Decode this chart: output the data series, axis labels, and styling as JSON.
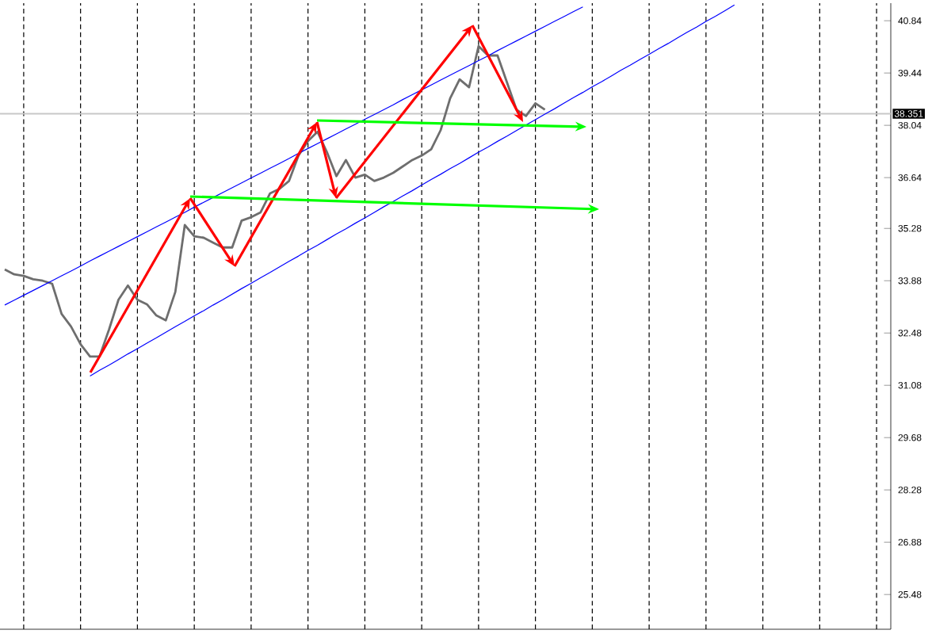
{
  "chart_data": {
    "type": "line",
    "categories": [
      null,
      null,
      null,
      null,
      null,
      null,
      null,
      null,
      null,
      null,
      null,
      null,
      null,
      null,
      null,
      null,
      null,
      null,
      null,
      null,
      null,
      null,
      null,
      null,
      null,
      null,
      null,
      null,
      null,
      null,
      null,
      null,
      null,
      null,
      null,
      null,
      null,
      null,
      null,
      null,
      null,
      null,
      null,
      null,
      null,
      null,
      null,
      null,
      null,
      null,
      null,
      null,
      null,
      null,
      null,
      null,
      null,
      null,
      null,
      null,
      null,
      null,
      null,
      null,
      null,
      null,
      null,
      null,
      null,
      null,
      null,
      null,
      null,
      null,
      null,
      null,
      null,
      null,
      null,
      null,
      null,
      null,
      null,
      null,
      null,
      null,
      null,
      null,
      null,
      null,
      null,
      null,
      null,
      null
    ],
    "series": [
      {
        "color": "#6e6e6e",
        "values": [
          34.18,
          34.05,
          34.01,
          33.92,
          33.88,
          33.8,
          32.99,
          32.65,
          32.18,
          31.85,
          31.85,
          32.57,
          33.37,
          33.75,
          33.37,
          33.25,
          32.95,
          32.82,
          33.58,
          35.37,
          35.07,
          35.03,
          34.9,
          34.77,
          34.77,
          35.49,
          35.58,
          35.71,
          36.22,
          36.34,
          36.55,
          37.23,
          37.62,
          37.87,
          37.32,
          36.68,
          37.11,
          36.64,
          36.72,
          36.55,
          36.64,
          36.77,
          36.94,
          37.11,
          37.23,
          37.4,
          37.91,
          38.76,
          39.27,
          39.06,
          40.16,
          39.91,
          39.91,
          39.19,
          38.46,
          38.29,
          38.63,
          38.46,
          null,
          null,
          null,
          null,
          null,
          null,
          null,
          null,
          null,
          null,
          null,
          null,
          null,
          null,
          null,
          null,
          null,
          null,
          null,
          null,
          null,
          null,
          null,
          null,
          null,
          null,
          null,
          null,
          null,
          null,
          null,
          null,
          null,
          null,
          null,
          null
        ]
      },
      {
        "color": "#0000ff",
        "values": [
          33.23,
          33.36,
          33.49,
          33.62,
          33.75,
          33.88,
          34.01,
          34.14,
          34.27,
          34.41,
          34.54,
          34.67,
          34.8,
          34.93,
          35.06,
          35.19,
          35.32,
          35.45,
          35.58,
          35.71,
          35.85,
          35.98,
          36.11,
          36.24,
          36.37,
          36.5,
          36.63,
          36.76,
          36.89,
          37.02,
          37.15,
          37.29,
          37.42,
          37.55,
          37.68,
          37.81,
          37.94,
          38.07,
          38.2,
          38.33,
          38.46,
          38.59,
          38.73,
          38.86,
          38.99,
          39.12,
          39.25,
          39.38,
          39.51,
          39.64,
          39.77,
          39.9,
          40.04,
          40.17,
          40.3,
          40.43,
          40.56,
          40.69,
          40.82,
          40.95,
          41.08,
          41.21,
          null,
          null,
          null,
          null,
          null,
          null,
          null,
          null,
          null,
          null,
          null,
          null,
          null,
          null,
          null,
          null,
          null,
          null,
          null,
          null,
          null,
          null,
          null,
          null,
          null,
          null,
          null,
          null,
          null,
          null,
          null,
          null
        ]
      },
      {
        "color": "#0000ff",
        "values": [
          null,
          null,
          null,
          null,
          null,
          null,
          null,
          null,
          null,
          31.33,
          31.48,
          31.62,
          31.77,
          31.92,
          32.06,
          32.21,
          32.35,
          32.5,
          32.65,
          32.79,
          32.94,
          33.08,
          33.23,
          33.37,
          33.52,
          33.67,
          33.81,
          33.96,
          34.1,
          34.25,
          34.4,
          34.54,
          34.69,
          34.83,
          34.98,
          35.13,
          35.27,
          35.42,
          35.56,
          35.71,
          35.86,
          36.0,
          36.15,
          36.29,
          36.44,
          36.59,
          36.73,
          36.88,
          37.02,
          37.17,
          37.32,
          37.46,
          37.61,
          37.75,
          37.9,
          38.05,
          38.19,
          38.34,
          38.48,
          38.63,
          38.78,
          38.92,
          39.07,
          39.21,
          39.36,
          39.51,
          39.65,
          39.8,
          39.94,
          40.09,
          40.23,
          40.38,
          40.53,
          40.67,
          40.82,
          40.96,
          41.11,
          41.26,
          null,
          null,
          null,
          null,
          null,
          null,
          null,
          null,
          null,
          null,
          null,
          null,
          null,
          null,
          null,
          null
        ]
      }
    ],
    "ylim": [
      24.55,
      41.31
    ],
    "yticks": [
      25.48,
      26.88,
      28.28,
      29.68,
      31.08,
      32.48,
      33.88,
      35.28,
      36.64,
      38.04,
      39.44,
      40.84
    ],
    "ref_lines": [
      {
        "axis": "y",
        "value": 38.351,
        "label": "38.351",
        "color": "#c8c8c8"
      }
    ],
    "grid": "x",
    "tick_labels": "y"
  }
}
